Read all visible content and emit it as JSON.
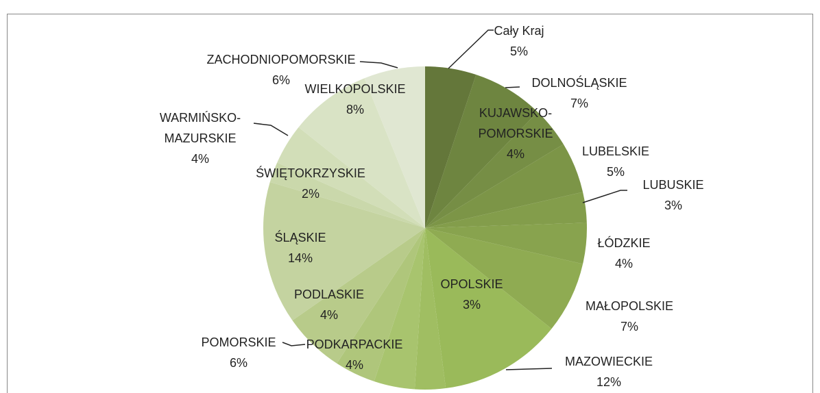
{
  "chart_data": {
    "type": "pie",
    "categories": [
      "Cały Kraj",
      "DOLNOŚLĄSKIE",
      "KUJAWSKO-POMORSKIE",
      "LUBELSKIE",
      "LUBUSKIE",
      "ŁÓDZKIE",
      "MAŁOPOLSKIE",
      "MAZOWIECKIE",
      "OPOLSKIE",
      "PODKARPACKIE",
      "PODLASKIE",
      "POMORSKIE",
      "ŚLĄSKIE",
      "ŚWIĘTOKRZYSKIE",
      "WARMIŃSKO-MAZURSKIE",
      "WIELKOPOLSKIE",
      "ZACHODNIOPOMORSKIE"
    ],
    "values": [
      5,
      7,
      4,
      5,
      3,
      4,
      7,
      12,
      3,
      4,
      4,
      6,
      14,
      2,
      4,
      8,
      6
    ],
    "value_labels": [
      "5%",
      "7%",
      "4%",
      "5%",
      "3%",
      "4%",
      "7%",
      "12%",
      "3%",
      "4%",
      "4%",
      "6%",
      "14%",
      "2%",
      "4%",
      "8%",
      "6%"
    ],
    "colors": [
      "#64773a",
      "#6e8540",
      "#768e45",
      "#7c9547",
      "#839d4b",
      "#88a34e",
      "#8fab52",
      "#9aba5a",
      "#a0be62",
      "#a8c46e",
      "#afc67b",
      "#b8cb8a",
      "#c4d3a0",
      "#cad8ab",
      "#d2deb8",
      "#d9e3c5",
      "#e0e7d2"
    ]
  }
}
